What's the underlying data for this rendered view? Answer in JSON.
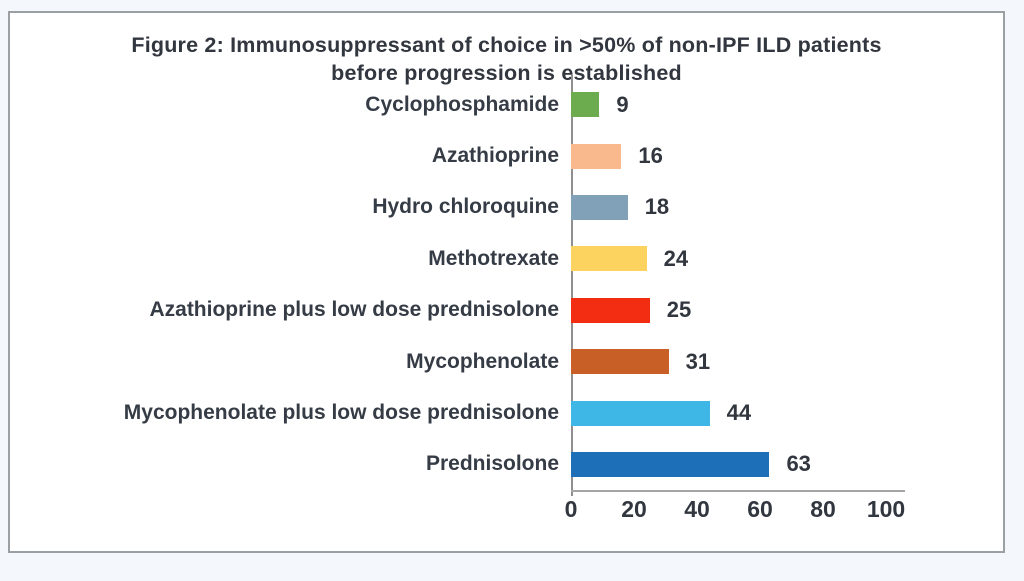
{
  "page": {
    "background_color": "#f4f7fb"
  },
  "card": {
    "background_color": "#ffffff",
    "border_color": "#9aa0a3"
  },
  "chart_data": {
    "type": "bar",
    "orientation": "horizontal",
    "title": "Figure 2: Immunosuppressant of choice in >50% of non-IPF ILD patients before progression is established",
    "categories": [
      "Cyclophosphamide",
      "Azathioprine",
      "Hydro chloroquine",
      "Methotrexate",
      "Azathioprine plus low dose prednisolone",
      "Mycophenolate",
      "Mycophenolate plus low dose prednisolone",
      "Prednisolone"
    ],
    "values": [
      9,
      16,
      18,
      24,
      25,
      31,
      44,
      63
    ],
    "bar_colors": [
      "#6cab4e",
      "#f9b98c",
      "#81a1b8",
      "#fcd35e",
      "#f32d11",
      "#c75f27",
      "#3eb6e6",
      "#1d6fb8"
    ],
    "data_labels_shown": true,
    "xlabel": "",
    "ylabel": "",
    "xlim": [
      0,
      100
    ],
    "x_ticks": [
      0,
      20,
      40,
      60,
      80,
      100
    ],
    "grid": false,
    "legend": false,
    "text_color": "#31363f",
    "axis_color": "#9c9c9c"
  }
}
